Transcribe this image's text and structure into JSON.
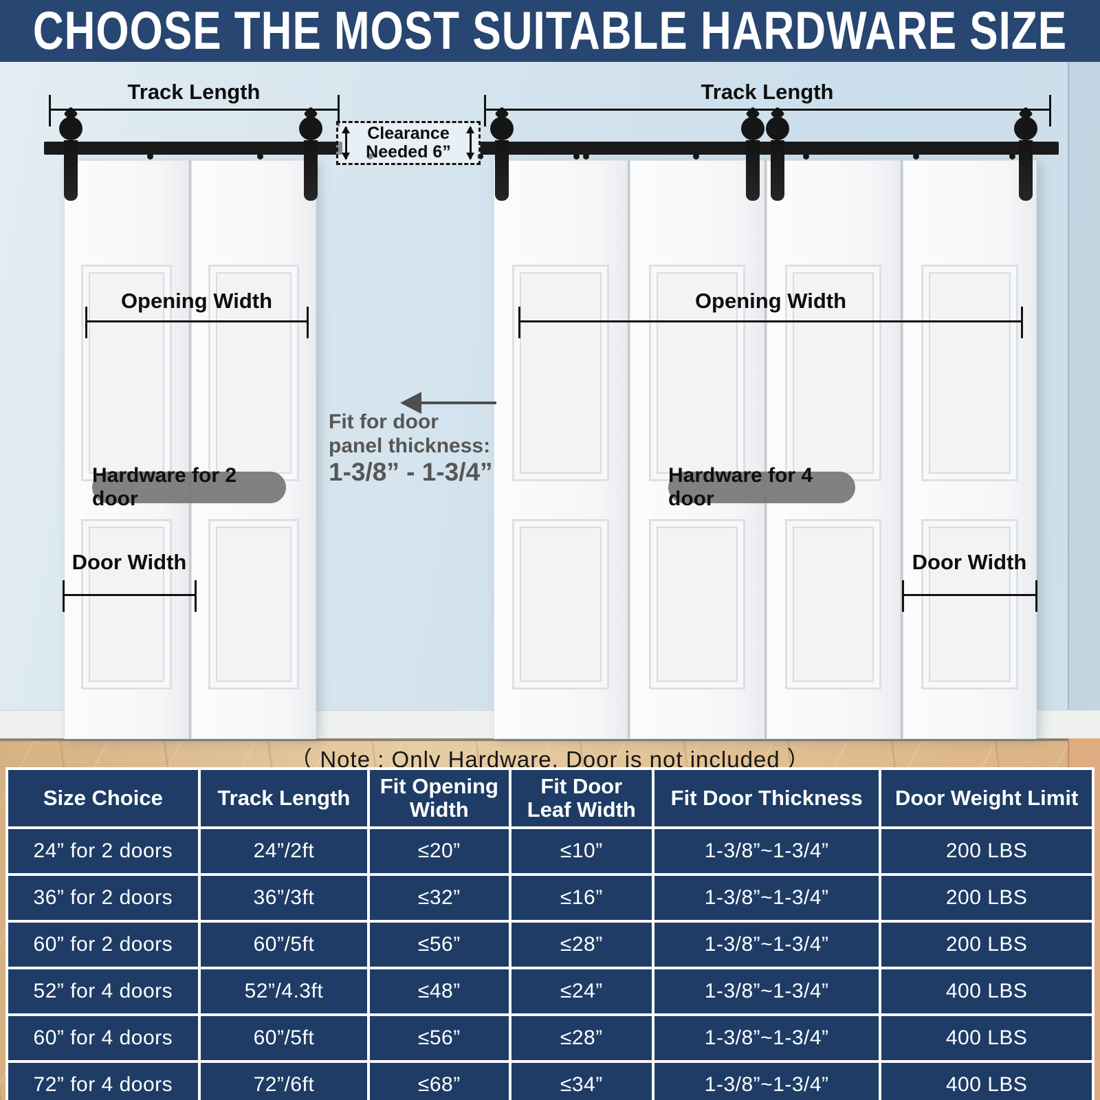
{
  "title": "CHOOSE THE MOST SUITABLE HARDWARE SIZE",
  "diagram": {
    "left_unit": {
      "track_length": "Track Length",
      "opening_width": "Opening Width",
      "door_width": "Door Width",
      "hardware_badge": "Hardware for 2 door"
    },
    "right_unit": {
      "track_length": "Track Length",
      "opening_width": "Opening Width",
      "door_width": "Door Width",
      "hardware_badge": "Hardware for 4 door"
    },
    "clearance_note": "Clearance\nNeeded 6”",
    "thickness_note": "Fit for door\npanel thickness:",
    "thickness_range": "1-3/8” - 1-3/4”"
  },
  "note": "（ Note : Only Hardware, Door is not included ）",
  "table": {
    "headers": [
      "Size Choice",
      "Track Length",
      "Fit Opening\nWidth",
      "Fit Door\nLeaf Width",
      "Fit Door Thickness",
      "Door Weight Limit"
    ],
    "rows": [
      [
        "24” for 2 doors",
        "24”/2ft",
        "≤20”",
        "≤10”",
        "1-3/8”~1-3/4”",
        "200 LBS"
      ],
      [
        "36” for 2 doors",
        "36”/3ft",
        "≤32”",
        "≤16”",
        "1-3/8”~1-3/4”",
        "200 LBS"
      ],
      [
        "60” for 2 doors",
        "60”/5ft",
        "≤56”",
        "≤28”",
        "1-3/8”~1-3/4”",
        "200 LBS"
      ],
      [
        "52” for 4 doors",
        "52”/4.3ft",
        "≤48”",
        "≤24”",
        "1-3/8”~1-3/4”",
        "400 LBS"
      ],
      [
        "60” for 4 doors",
        "60”/5ft",
        "≤56”",
        "≤28”",
        "1-3/8”~1-3/4”",
        "400 LBS"
      ],
      [
        "72” for 4 doors",
        "72”/6ft",
        "≤68”",
        "≤34”",
        "1-3/8”~1-3/4”",
        "400 LBS"
      ]
    ]
  },
  "colors": {
    "title_navy": "#274671",
    "table_navy": "#1e3c66",
    "wall_blue": "#d2e2ee",
    "floor_tan": "#e0bf92",
    "hardware_black": "#1a1a1a",
    "badge_gray": "#767676",
    "annotation_black": "#111111",
    "gray_text": "#565656",
    "white": "#ffffff"
  }
}
